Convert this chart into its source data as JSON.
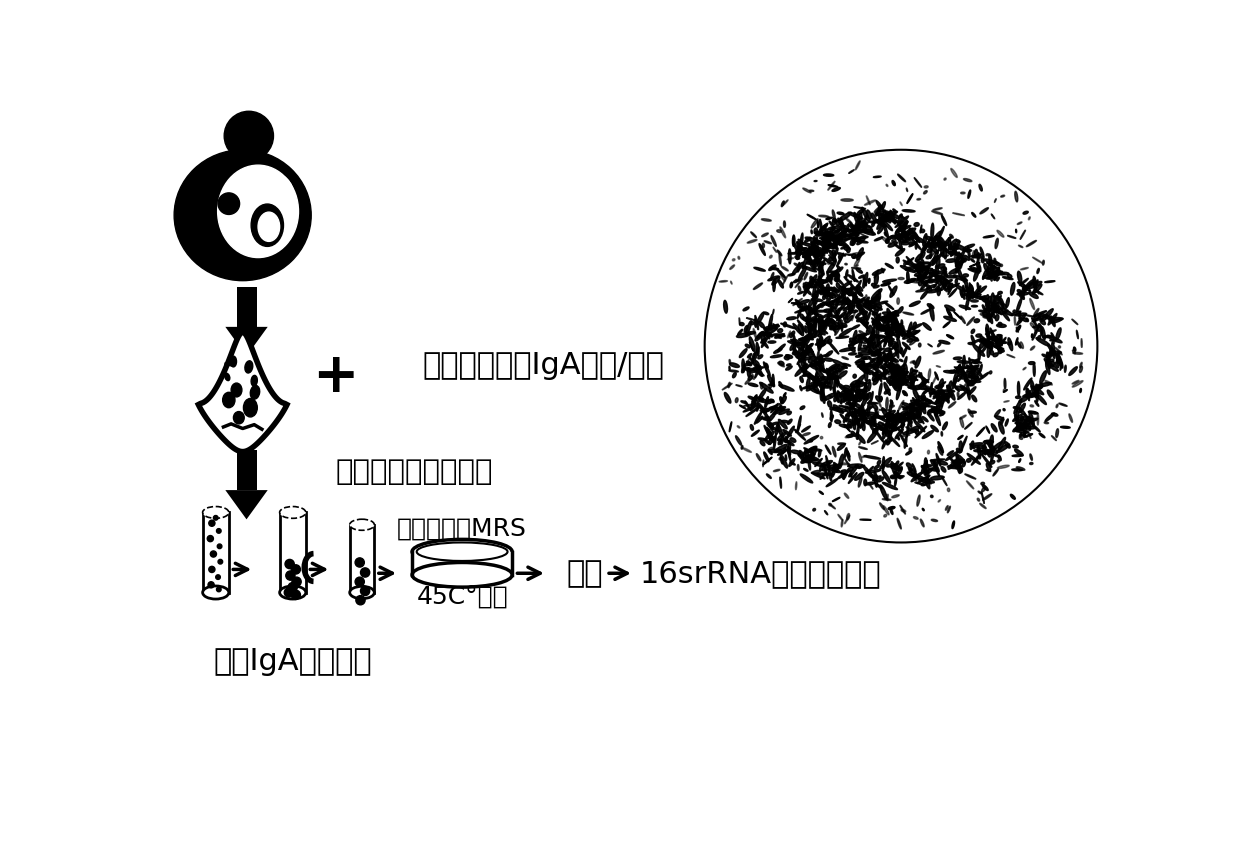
{
  "bg_color": "#ffffff",
  "text_color": "#000000",
  "label_biotin": "生物素化抗人IgA抗体/血清",
  "label_streptavidin": "链霉亲合素修饰磁珠",
  "label_vancomycin": "加万古霉素MRS",
  "label_culture": "45C°培养",
  "label_enrich": "富集IgA结合菌群",
  "label_purify": "纯化",
  "label_sequencing": "16srRNA基因测序鉴定",
  "plus_sign": "+",
  "figsize": [
    12.39,
    8.63
  ],
  "dpi": 100
}
